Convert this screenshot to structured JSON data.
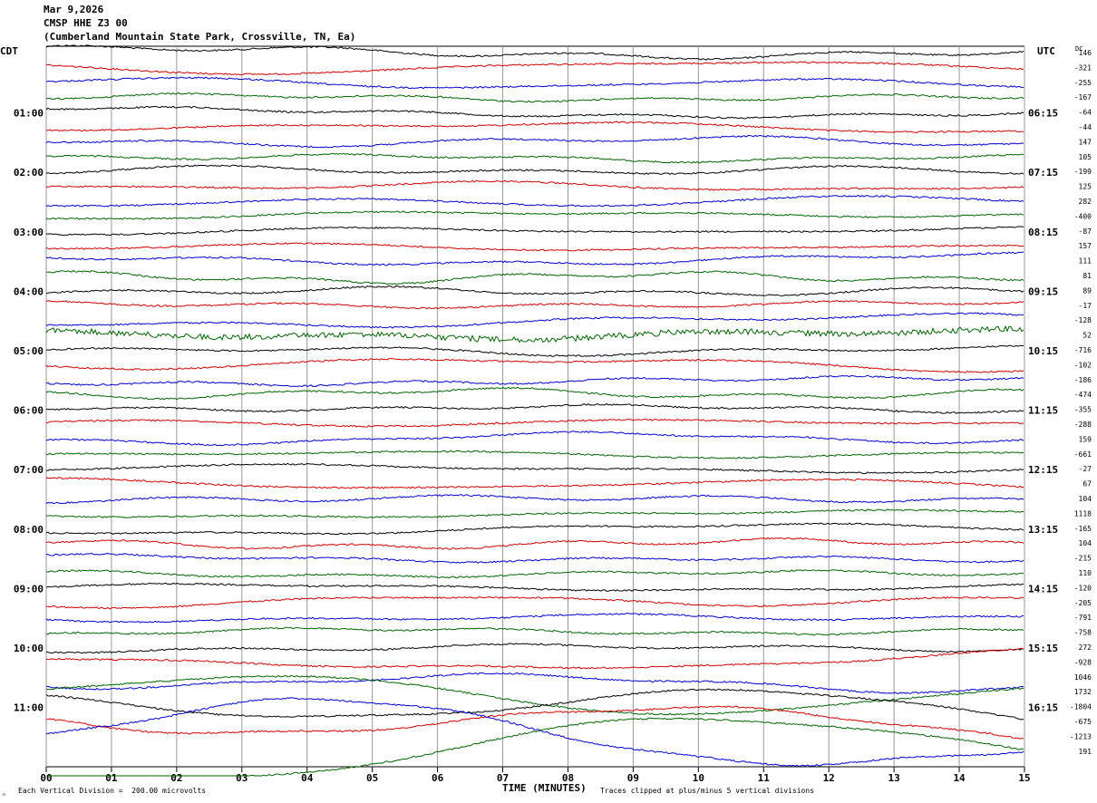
{
  "header": {
    "date": "Mar 9,2026",
    "station": "CMSP HHE Z3 00",
    "location": "(Cumberland Mountain State Park, Crossville, TN, Ea)"
  },
  "left_axis_label": "CDT",
  "right_axis_label": "UTC",
  "dc_label": "DC",
  "footer": {
    "scale_note": "Each Vertical Division =  200.00 microvolts",
    "clip_note": "Traces clipped at plus/minus 5 vertical divisions",
    "corner_mark": "ₙ"
  },
  "colors": {
    "black": "#000000",
    "red": "#cc0000",
    "blue": "#0000cc",
    "green": "#006400",
    "grid": "#999999"
  },
  "chart_data": {
    "type": "line",
    "subtype": "helicorder",
    "xlabel": "TIME (MINUTES)",
    "x_ticks": [
      "00",
      "01",
      "02",
      "03",
      "04",
      "05",
      "06",
      "07",
      "08",
      "09",
      "10",
      "11",
      "12",
      "13",
      "14",
      "15"
    ],
    "xlim": [
      0,
      15
    ],
    "trace_minutes": 15,
    "trace_count": 48,
    "trace_colors": [
      "black",
      "red",
      "blue",
      "green"
    ],
    "grid": "vertical-minutes",
    "left_hour_labels": [
      "01:00",
      "02:00",
      "03:00",
      "04:00",
      "05:00",
      "06:00",
      "07:00",
      "08:00",
      "09:00",
      "10:00",
      "11:00"
    ],
    "right_hour_labels": [
      "06:15",
      "07:15",
      "08:15",
      "09:15",
      "10:15",
      "11:15",
      "12:15",
      "13:15",
      "14:15",
      "15:15",
      "16:15"
    ],
    "dc_offsets": [
      "146",
      "-321",
      "-255",
      "-167",
      "-64",
      "-44",
      "147",
      "105",
      "-199",
      "125",
      "282",
      "-400",
      "-87",
      "157",
      "111",
      "81",
      "89",
      "-17",
      "-128",
      "52",
      "-716",
      "-102",
      "-186",
      "-474",
      "-355",
      "-288",
      "159",
      "-661",
      "-27",
      "67",
      "104",
      "1118",
      "-165",
      "104",
      "-215",
      "110",
      "-120",
      "-205",
      "-791",
      "-758",
      "272",
      "-928",
      "1046",
      "1732",
      "-1804",
      "-675",
      "-1213",
      "191"
    ]
  }
}
